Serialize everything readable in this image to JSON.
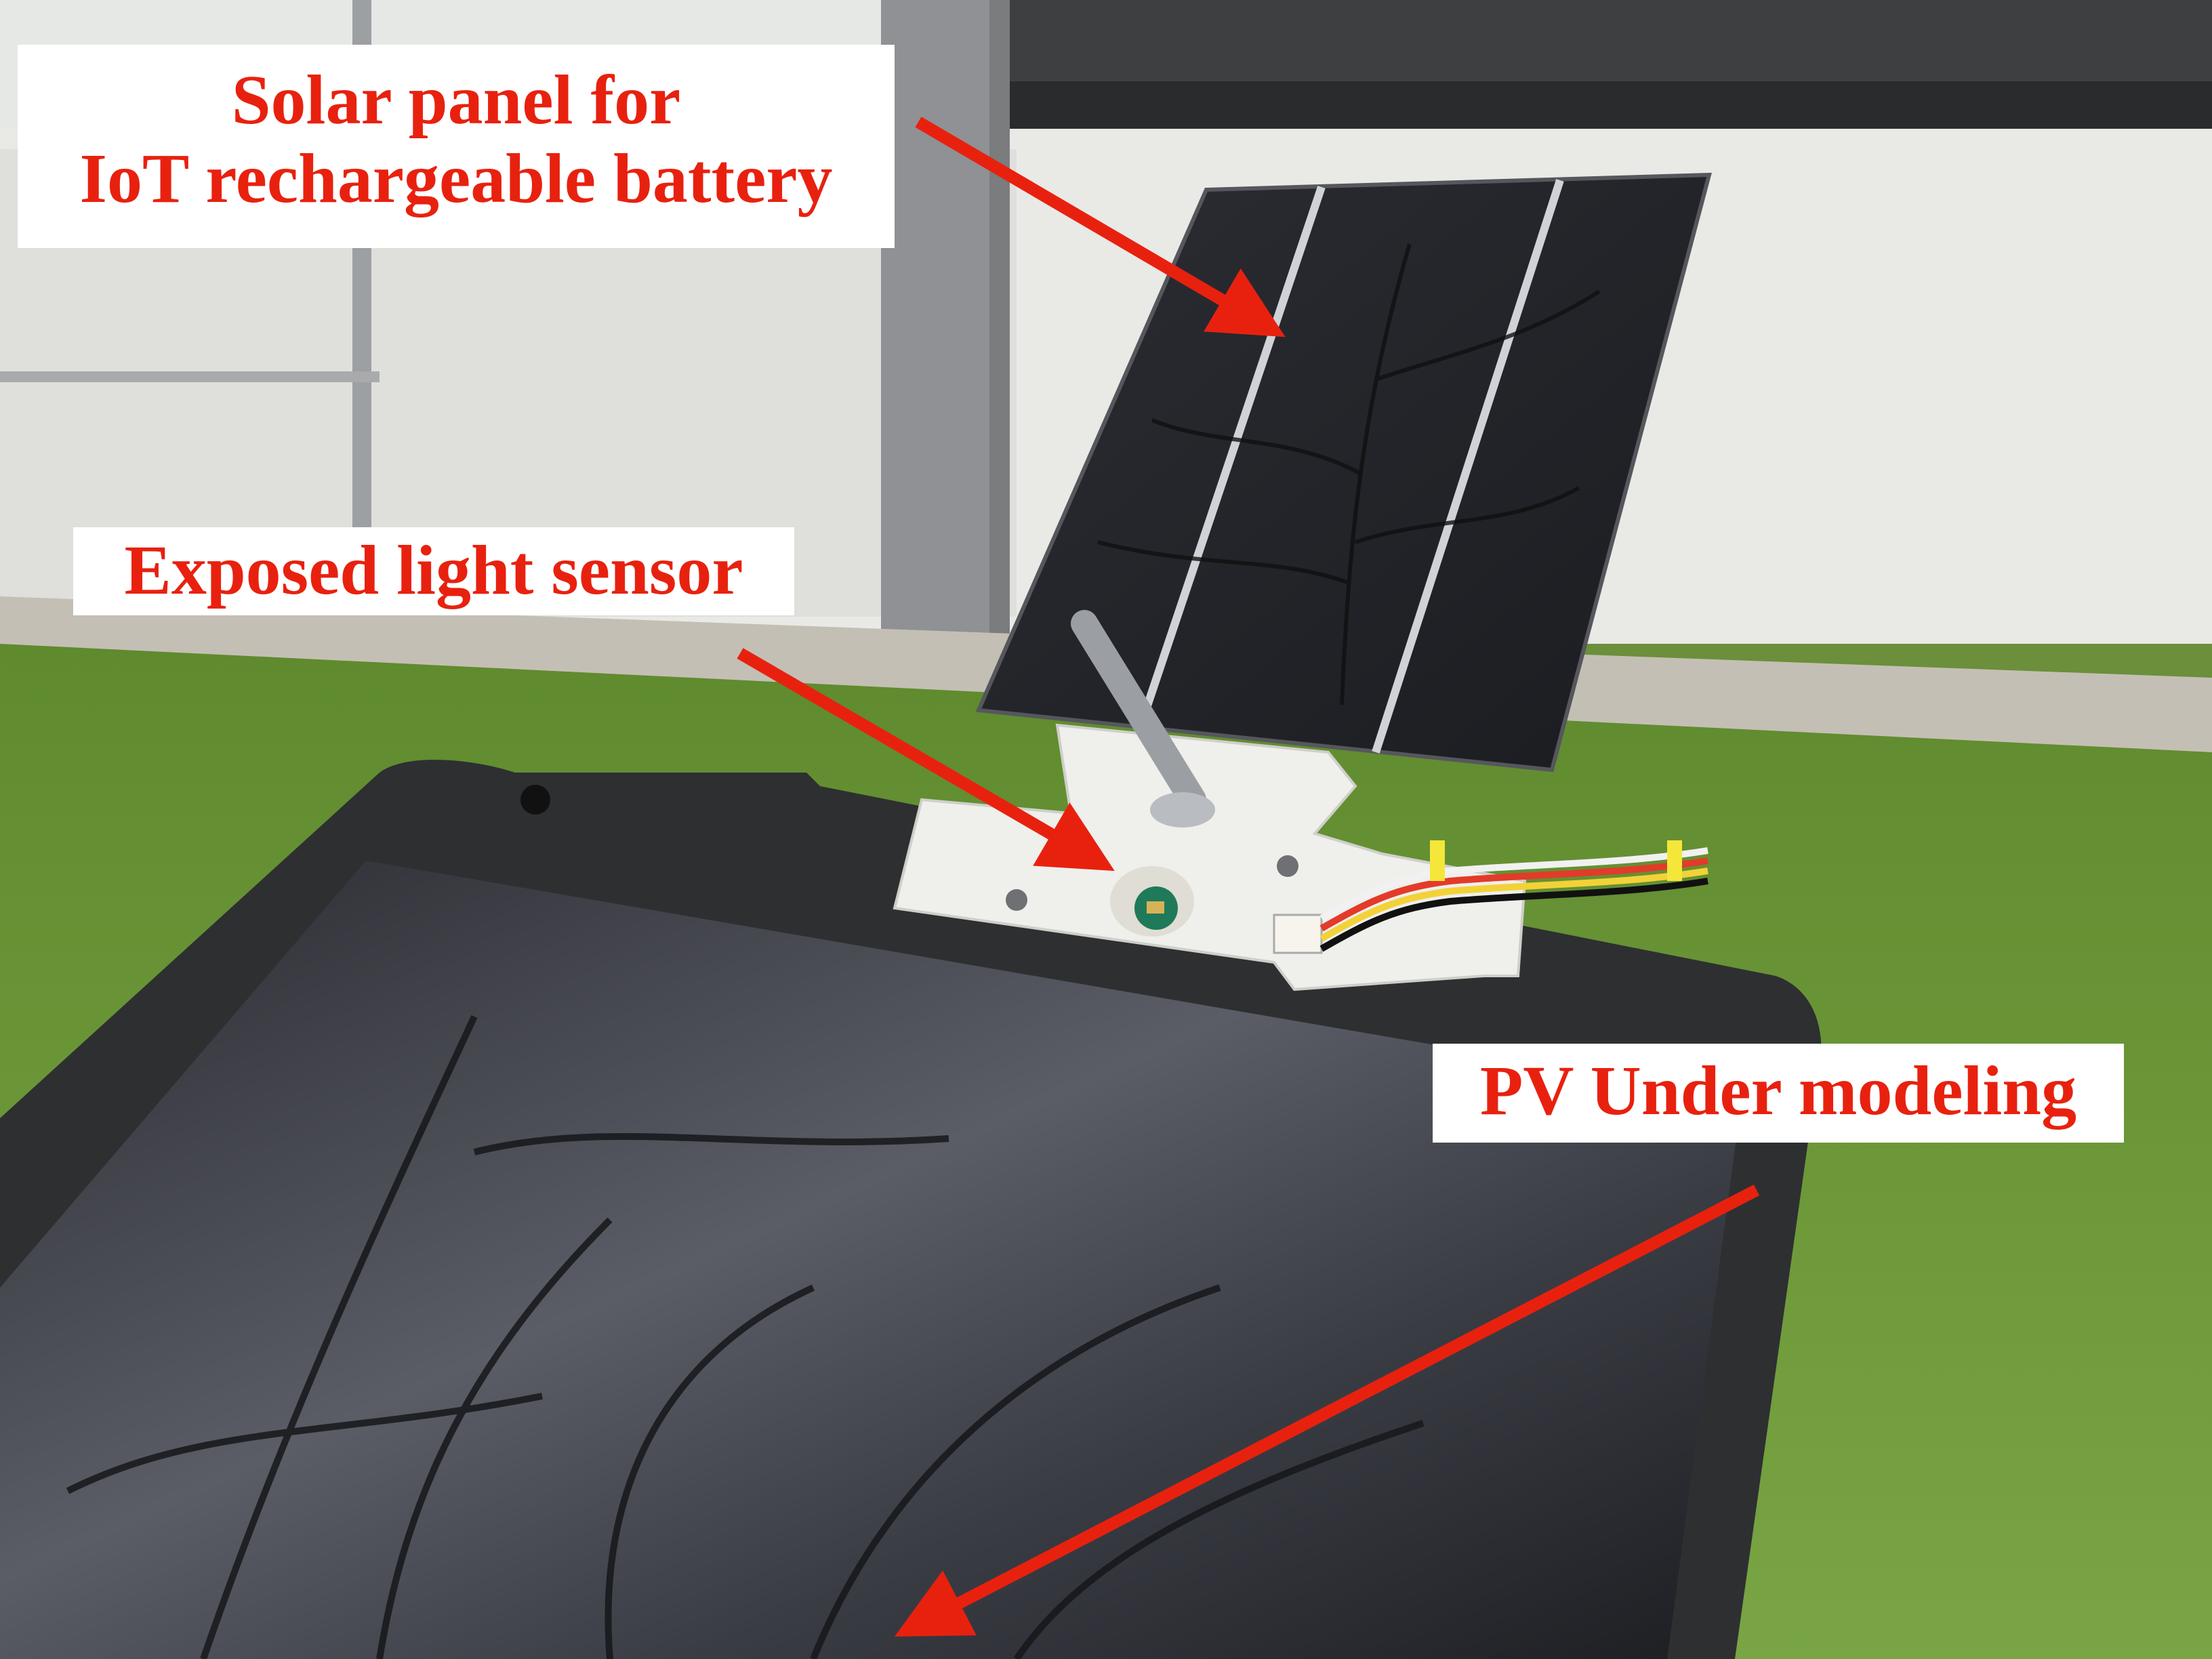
{
  "labels": {
    "solar_panel_line1": "Solar panel for",
    "solar_panel_line2": "IoT rechargeable battery",
    "light_sensor": "Exposed light sensor",
    "pv_under_modeling": "PV Under modeling"
  },
  "colors": {
    "annotation_text": "#e8210f",
    "annotation_arrow": "#e8210f",
    "label_background": "#ffffff"
  }
}
